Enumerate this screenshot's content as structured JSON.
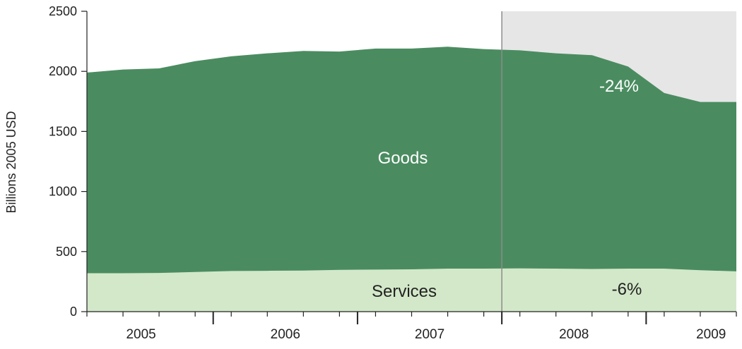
{
  "chart_data": {
    "type": "area",
    "title": "",
    "xlabel": "",
    "ylabel": "Billions 2005 USD",
    "ylim": [
      0,
      2500
    ],
    "yticks": [
      0,
      500,
      1000,
      1500,
      2000,
      2500
    ],
    "x_quarters": [
      "2005Q1",
      "2005Q2",
      "2005Q3",
      "2005Q4",
      "2006Q1",
      "2006Q2",
      "2006Q3",
      "2006Q4",
      "2007Q1",
      "2007Q2",
      "2007Q3",
      "2007Q4",
      "2008Q1",
      "2008Q2",
      "2008Q3",
      "2008Q4",
      "2009Q1",
      "2009Q2",
      "2009Q3"
    ],
    "year_labels": [
      {
        "label": "2005",
        "center_q": 1.5
      },
      {
        "label": "2006",
        "center_q": 5.5
      },
      {
        "label": "2007",
        "center_q": 9.5
      },
      {
        "label": "2008",
        "center_q": 13.5
      },
      {
        "label": "2009",
        "center_q": 17.3
      }
    ],
    "year_boundaries_q": [
      3.5,
      7.5,
      11.5,
      15.5
    ],
    "series": [
      {
        "name": "Services",
        "color": "#d3e8c9",
        "values": [
          320,
          320,
          322,
          330,
          338,
          340,
          342,
          348,
          350,
          352,
          358,
          358,
          360,
          358,
          355,
          358,
          358,
          345,
          335
        ]
      },
      {
        "name": "Goods",
        "color": "#4a8c60",
        "values_total": [
          1990,
          2015,
          2025,
          2085,
          2125,
          2150,
          2170,
          2165,
          2190,
          2190,
          2205,
          2185,
          2175,
          2150,
          2135,
          2040,
          1820,
          1745,
          1745
        ]
      }
    ],
    "shaded_region": {
      "start_q": 11.5,
      "color": "#e6e6e6"
    },
    "divider_line_color": "#8c8c8c",
    "annotations": {
      "goods_label": "Goods",
      "services_label": "Services",
      "goods_change": "-24%",
      "services_change": "-6%"
    }
  }
}
